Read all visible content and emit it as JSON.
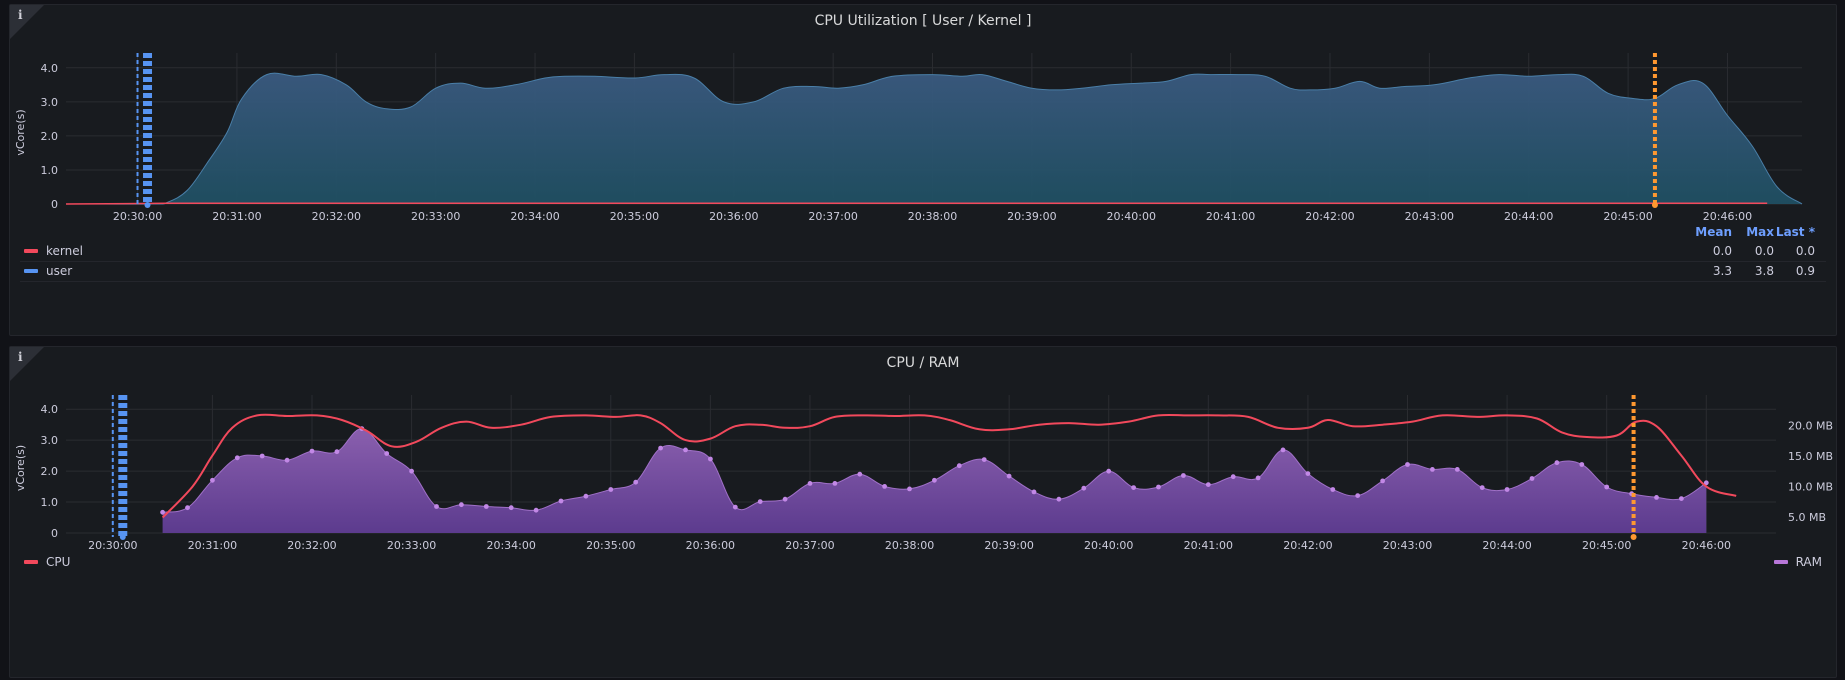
{
  "panels": [
    {
      "info_icon": "info-icon",
      "title": "CPU Utilization [ User / Kernel ]"
    },
    {
      "info_icon": "info-icon",
      "title": "CPU / RAM"
    }
  ],
  "legend1": {
    "headers": [
      "Mean",
      "Max",
      "Last *"
    ],
    "rows": [
      {
        "name": "kernel",
        "color": "#f2495c",
        "mean": "0.0",
        "max": "0.0",
        "last": "0.0"
      },
      {
        "name": "user",
        "color": "#5794f2",
        "mean": "3.3",
        "max": "3.8",
        "last": "0.9"
      }
    ]
  },
  "legend2": {
    "left": {
      "name": "CPU",
      "color": "#f2495c"
    },
    "right": {
      "name": "RAM",
      "color": "#b877d9"
    }
  },
  "chart_data": [
    {
      "type": "area",
      "title": "CPU Utilization [ User / Kernel ]",
      "ylabel": "vCore(s)",
      "ylim": [
        0,
        4.2
      ],
      "yticks": [
        0,
        1.0,
        2.0,
        3.0,
        4.0
      ],
      "ytick_labels": [
        "0",
        "1.0",
        "2.0",
        "3.0",
        "4.0"
      ],
      "xlim": [
        -0.72,
        16.75
      ],
      "xticks": [
        0,
        1,
        2,
        3,
        4,
        5,
        6,
        7,
        8,
        9,
        10,
        11,
        12,
        13,
        14,
        15,
        16
      ],
      "xtick_labels": [
        "20:30:00",
        "20:31:00",
        "20:32:00",
        "20:33:00",
        "20:34:00",
        "20:35:00",
        "20:36:00",
        "20:37:00",
        "20:38:00",
        "20:39:00",
        "20:40:00",
        "20:41:00",
        "20:42:00",
        "20:43:00",
        "20:44:00",
        "20:45:00",
        "20:46:00"
      ],
      "grid": true,
      "annotations": [
        {
          "type": "region",
          "color": "#5794f2",
          "x": 0.05
        },
        {
          "type": "line",
          "color": "#ff9830",
          "x": 15.27
        }
      ],
      "series": [
        {
          "name": "user",
          "color": "#5794f2",
          "x": [
            -0.72,
            0.15,
            0.3,
            0.5,
            0.7,
            0.9,
            1.05,
            1.3,
            1.6,
            1.85,
            2.1,
            2.3,
            2.5,
            2.75,
            3.0,
            3.25,
            3.5,
            3.8,
            4.1,
            4.3,
            4.6,
            5.0,
            5.3,
            5.6,
            5.9,
            6.2,
            6.5,
            6.8,
            7.05,
            7.3,
            7.6,
            8.0,
            8.3,
            8.5,
            8.75,
            9.0,
            9.25,
            9.5,
            9.8,
            10.1,
            10.35,
            10.6,
            10.8,
            11.1,
            11.35,
            11.6,
            11.8,
            12.05,
            12.3,
            12.5,
            12.75,
            13.05,
            13.4,
            13.7,
            14.0,
            14.3,
            14.55,
            14.8,
            15.05,
            15.27,
            15.5,
            15.75,
            16.0,
            16.25,
            16.5,
            16.75
          ],
          "values": [
            0,
            0,
            0.05,
            0.4,
            1.2,
            2.1,
            3.1,
            3.8,
            3.75,
            3.8,
            3.5,
            3.0,
            2.8,
            2.85,
            3.4,
            3.55,
            3.4,
            3.5,
            3.7,
            3.75,
            3.75,
            3.7,
            3.8,
            3.7,
            3.0,
            3.0,
            3.4,
            3.45,
            3.4,
            3.5,
            3.75,
            3.8,
            3.75,
            3.8,
            3.6,
            3.4,
            3.35,
            3.4,
            3.5,
            3.55,
            3.6,
            3.8,
            3.8,
            3.8,
            3.75,
            3.4,
            3.35,
            3.4,
            3.6,
            3.4,
            3.45,
            3.5,
            3.7,
            3.8,
            3.75,
            3.8,
            3.75,
            3.25,
            3.1,
            3.1,
            3.5,
            3.55,
            2.6,
            1.7,
            0.5,
            0
          ]
        },
        {
          "name": "kernel",
          "color": "#f2495c",
          "x": [
            -0.72,
            0.3,
            16.4
          ],
          "values": [
            0,
            0.02,
            0.02
          ]
        }
      ]
    },
    {
      "type": "line",
      "title": "CPU / RAM",
      "ylabel": "vCore(s)",
      "ylim": [
        0,
        4.2
      ],
      "yticks": [
        0,
        1.0,
        2.0,
        3.0,
        4.0
      ],
      "ytick_labels": [
        "0",
        "1.0",
        "2.0",
        "3.0",
        "4.0"
      ],
      "y2lim": [
        2.35,
        23.7
      ],
      "y2ticks": [
        5,
        10,
        15,
        20
      ],
      "y2tick_labels": [
        "5.0 MB",
        "10.0 MB",
        "15.0 MB",
        "20.0 MB"
      ],
      "xlim": [
        -0.47,
        16.7
      ],
      "xticks": [
        0,
        1,
        2,
        3,
        4,
        5,
        6,
        7,
        8,
        9,
        10,
        11,
        12,
        13,
        14,
        15,
        16
      ],
      "xtick_labels": [
        "20:30:00",
        "20:31:00",
        "20:32:00",
        "20:33:00",
        "20:34:00",
        "20:35:00",
        "20:36:00",
        "20:37:00",
        "20:38:00",
        "20:39:00",
        "20:40:00",
        "20:41:00",
        "20:42:00",
        "20:43:00",
        "20:44:00",
        "20:45:00",
        "20:46:00"
      ],
      "grid": true,
      "annotations": [
        {
          "type": "region",
          "color": "#5794f2",
          "x": 0.05
        },
        {
          "type": "line",
          "color": "#ff9830",
          "x": 15.27
        }
      ],
      "series": [
        {
          "name": "CPU",
          "axis": "left",
          "color": "#f2495c",
          "x": [
            0.5,
            0.8,
            1.0,
            1.2,
            1.45,
            1.75,
            2.05,
            2.3,
            2.55,
            2.8,
            3.05,
            3.3,
            3.55,
            3.8,
            4.1,
            4.4,
            4.75,
            5.05,
            5.3,
            5.5,
            5.75,
            6.0,
            6.25,
            6.5,
            6.75,
            7.0,
            7.25,
            7.55,
            7.85,
            8.15,
            8.4,
            8.7,
            9.0,
            9.3,
            9.6,
            9.9,
            10.2,
            10.5,
            10.8,
            11.1,
            11.4,
            11.7,
            12.0,
            12.2,
            12.45,
            12.75,
            13.05,
            13.35,
            13.7,
            14.0,
            14.3,
            14.55,
            14.8,
            15.1,
            15.3,
            15.5,
            15.75,
            16.0,
            16.3
          ],
          "values": [
            0.5,
            1.5,
            2.5,
            3.4,
            3.8,
            3.78,
            3.8,
            3.65,
            3.3,
            2.8,
            2.95,
            3.4,
            3.6,
            3.4,
            3.5,
            3.75,
            3.8,
            3.75,
            3.8,
            3.55,
            3.0,
            3.05,
            3.45,
            3.5,
            3.4,
            3.45,
            3.75,
            3.8,
            3.78,
            3.8,
            3.65,
            3.35,
            3.35,
            3.5,
            3.55,
            3.5,
            3.6,
            3.8,
            3.8,
            3.8,
            3.75,
            3.4,
            3.4,
            3.65,
            3.45,
            3.5,
            3.6,
            3.8,
            3.75,
            3.8,
            3.7,
            3.25,
            3.1,
            3.15,
            3.6,
            3.45,
            2.5,
            1.5,
            1.2
          ]
        },
        {
          "name": "RAM",
          "axis": "right",
          "color": "#b877d9",
          "x": [
            0.5,
            0.75,
            1.0,
            1.25,
            1.5,
            1.75,
            2.0,
            2.25,
            2.5,
            2.75,
            3.0,
            3.25,
            3.5,
            3.75,
            4.0,
            4.25,
            4.5,
            4.75,
            5.0,
            5.25,
            5.5,
            5.75,
            6.0,
            6.25,
            6.5,
            6.75,
            7.0,
            7.25,
            7.5,
            7.75,
            8.0,
            8.25,
            8.5,
            8.75,
            9.0,
            9.25,
            9.5,
            9.75,
            10.0,
            10.25,
            10.5,
            10.75,
            11.0,
            11.25,
            11.5,
            11.75,
            12.0,
            12.25,
            12.5,
            12.75,
            13.0,
            13.25,
            13.5,
            13.75,
            14.0,
            14.25,
            14.5,
            14.75,
            15.0,
            15.25,
            15.5,
            15.75,
            16.0
          ],
          "values": [
            5.75,
            6.5,
            11.0,
            14.7,
            15.0,
            14.3,
            15.8,
            15.7,
            19.5,
            15.4,
            12.5,
            6.7,
            7.0,
            6.7,
            6.5,
            6.1,
            7.6,
            8.4,
            9.5,
            10.7,
            16.3,
            16.0,
            14.5,
            6.6,
            7.5,
            7.9,
            10.5,
            10.5,
            12.0,
            10.0,
            9.6,
            11.0,
            13.4,
            14.4,
            11.7,
            9.1,
            7.9,
            9.7,
            12.5,
            9.8,
            9.9,
            11.8,
            10.3,
            11.6,
            11.4,
            16.0,
            12.1,
            9.5,
            8.5,
            10.9,
            13.6,
            12.8,
            12.8,
            9.8,
            9.5,
            11.3,
            13.9,
            13.6,
            9.9,
            8.8,
            8.2,
            8.0,
            10.6
          ]
        }
      ]
    }
  ]
}
